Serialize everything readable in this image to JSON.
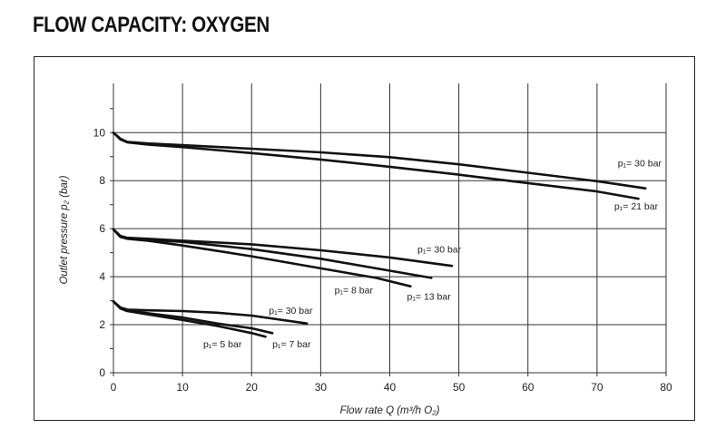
{
  "title": "FLOW CAPACITY: OXYGEN",
  "chart_data": {
    "type": "line",
    "title": "FLOW CAPACITY: OXYGEN",
    "xlabel": "Flow rate Q (m³/h O₂)",
    "ylabel": "Outlet pressure p₂ (bar)",
    "xlim": [
      0,
      80
    ],
    "ylim": [
      0,
      12
    ],
    "xticks": [
      0,
      10,
      20,
      30,
      40,
      50,
      60,
      70,
      80
    ],
    "yticks": [
      0,
      2,
      4,
      6,
      8,
      10
    ],
    "grid": true,
    "series": [
      {
        "name": "p₁= 30 bar",
        "label_at": [
          73,
          8.6
        ],
        "x": [
          0,
          1,
          2,
          5,
          10,
          20,
          30,
          40,
          50,
          60,
          70,
          77
        ],
        "y": [
          10.0,
          9.75,
          9.62,
          9.55,
          9.48,
          9.33,
          9.18,
          8.98,
          8.68,
          8.33,
          7.98,
          7.68
        ]
      },
      {
        "name": "p₁= 21 bar",
        "label_at": [
          72.5,
          6.8
        ],
        "x": [
          0,
          1,
          2,
          5,
          10,
          20,
          30,
          40,
          50,
          60,
          70,
          76
        ],
        "y": [
          10.0,
          9.72,
          9.6,
          9.5,
          9.4,
          9.15,
          8.88,
          8.58,
          8.25,
          7.9,
          7.55,
          7.25
        ]
      },
      {
        "name": "p₁= 30 bar",
        "label_at": [
          44,
          5.0
        ],
        "x": [
          0,
          1,
          2,
          5,
          10,
          20,
          30,
          40,
          49
        ],
        "y": [
          5.97,
          5.7,
          5.62,
          5.58,
          5.5,
          5.35,
          5.1,
          4.8,
          4.45
        ]
      },
      {
        "name": "p₁= 13 bar",
        "label_at": [
          42.5,
          3.05
        ],
        "x": [
          0,
          1,
          2,
          5,
          10,
          20,
          30,
          40,
          46
        ],
        "y": [
          5.97,
          5.68,
          5.6,
          5.54,
          5.45,
          5.15,
          4.75,
          4.25,
          3.95
        ]
      },
      {
        "name": "p₁= 8 bar",
        "label_at": [
          32,
          3.3
        ],
        "x": [
          0,
          1,
          2,
          5,
          10,
          20,
          30,
          38,
          43
        ],
        "y": [
          5.97,
          5.66,
          5.58,
          5.5,
          5.3,
          4.85,
          4.35,
          3.95,
          3.6
        ]
      },
      {
        "name": "p₁= 30 bar",
        "label_at": [
          22.5,
          2.45
        ],
        "x": [
          0,
          1,
          2,
          5,
          10,
          15,
          20,
          28
        ],
        "y": [
          2.97,
          2.72,
          2.63,
          2.6,
          2.57,
          2.5,
          2.38,
          2.05
        ]
      },
      {
        "name": "p₁= 7 bar",
        "label_at": [
          23,
          1.05
        ],
        "x": [
          0,
          1,
          2,
          5,
          10,
          15,
          20,
          23
        ],
        "y": [
          2.97,
          2.7,
          2.6,
          2.48,
          2.3,
          2.05,
          1.85,
          1.65
        ]
      },
      {
        "name": "p₁= 5 bar",
        "label_at": [
          13,
          1.05
        ],
        "x": [
          0,
          1,
          2,
          5,
          10,
          15,
          20,
          22
        ],
        "y": [
          2.97,
          2.68,
          2.57,
          2.43,
          2.2,
          1.95,
          1.65,
          1.5
        ]
      }
    ]
  }
}
